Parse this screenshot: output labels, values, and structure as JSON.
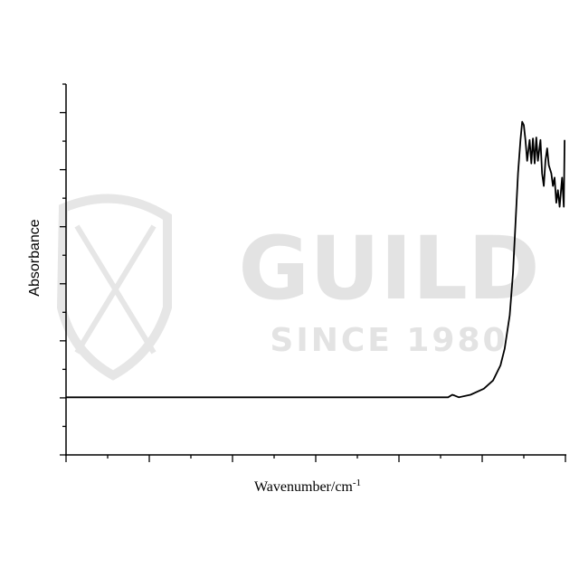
{
  "watermark": {
    "title": "GUILD",
    "subtitle": "SINCE 1980"
  },
  "chart_data": {
    "type": "line",
    "title": "",
    "xlabel": "Wavenumber/cm",
    "xlabel_superscript": "-1",
    "ylabel": "Absorbance",
    "xlim": [
      0,
      6
    ],
    "ylim": [
      -1,
      12
    ],
    "x_tick_labels": "none",
    "y_tick_labels": "none",
    "grid": false,
    "line_color": "#000000",
    "series": [
      {
        "x": [
          0,
          2.47,
          4.59,
          4.64,
          4.67,
          4.72,
          4.86,
          5.02,
          5.13,
          5.22,
          5.27,
          5.33,
          5.37,
          5.4,
          5.43,
          5.46,
          5.48,
          5.5,
          5.52,
          5.54,
          5.57,
          5.59,
          5.61,
          5.63,
          5.65,
          5.67,
          5.7,
          5.72,
          5.74,
          5.76,
          5.78,
          5.8,
          5.83,
          5.85,
          5.87,
          5.89,
          5.91,
          5.93,
          5.96,
          5.98,
          5.99
        ],
        "y": [
          1.02,
          1.02,
          1.02,
          1.11,
          1.08,
          1.02,
          1.11,
          1.32,
          1.61,
          2.14,
          2.72,
          3.89,
          5.36,
          7.11,
          8.87,
          10.04,
          10.68,
          10.56,
          10.04,
          9.31,
          10.04,
          9.22,
          10.09,
          9.22,
          10.13,
          9.31,
          10.04,
          8.87,
          8.43,
          9.31,
          9.75,
          9.16,
          8.87,
          8.43,
          8.72,
          7.84,
          8.28,
          7.7,
          8.72,
          7.7,
          10.04
        ]
      }
    ]
  }
}
